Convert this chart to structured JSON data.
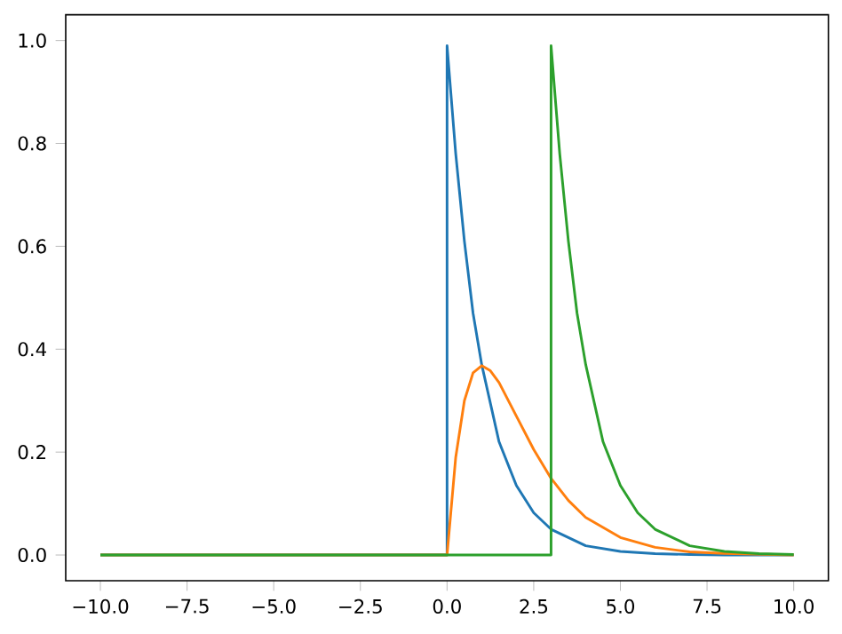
{
  "chart_data": {
    "type": "line",
    "xlim": [
      -11,
      11
    ],
    "ylim": [
      -0.05,
      1.05
    ],
    "xticks": [
      {
        "value": -10,
        "label": "−10.0"
      },
      {
        "value": -7.5,
        "label": "−7.5"
      },
      {
        "value": -5,
        "label": "−5.0"
      },
      {
        "value": -2.5,
        "label": "−2.5"
      },
      {
        "value": 0,
        "label": "0.0"
      },
      {
        "value": 2.5,
        "label": "2.5"
      },
      {
        "value": 5,
        "label": "5.0"
      },
      {
        "value": 7.5,
        "label": "7.5"
      },
      {
        "value": 10,
        "label": "10.0"
      }
    ],
    "yticks": [
      {
        "value": 0,
        "label": "0.0"
      },
      {
        "value": 0.2,
        "label": "0.2"
      },
      {
        "value": 0.4,
        "label": "0.4"
      },
      {
        "value": 0.6,
        "label": "0.6"
      },
      {
        "value": 0.8,
        "label": "0.8"
      },
      {
        "value": 1,
        "label": "1.0"
      }
    ],
    "grid": false,
    "marker": "none",
    "line_style": "solid",
    "series": [
      {
        "color": "#1f77b4",
        "x": [
          -10,
          0,
          0,
          0.25,
          0.5,
          0.75,
          1,
          1.5,
          2,
          2.5,
          3,
          4,
          5,
          6,
          7,
          8,
          10
        ],
        "values": [
          0,
          0,
          0.99,
          0.78,
          0.61,
          0.47,
          0.37,
          0.22,
          0.135,
          0.082,
          0.05,
          0.018,
          0.007,
          0.0025,
          0.001,
          0,
          0
        ]
      },
      {
        "color": "#ff7f0e",
        "x": [
          -10,
          0,
          0.25,
          0.5,
          0.75,
          1,
          1.25,
          1.5,
          2,
          2.5,
          3,
          3.5,
          4,
          5,
          6,
          7,
          8,
          10
        ],
        "values": [
          0,
          0,
          0.19,
          0.3,
          0.354,
          0.368,
          0.358,
          0.335,
          0.27,
          0.205,
          0.149,
          0.106,
          0.073,
          0.034,
          0.015,
          0.006,
          0.003,
          0
        ]
      },
      {
        "color": "#2ca02c",
        "x": [
          -10,
          3,
          3,
          3.25,
          3.5,
          3.75,
          4,
          4.5,
          5,
          5.5,
          6,
          7,
          8,
          9,
          10
        ],
        "values": [
          0,
          0,
          0.99,
          0.78,
          0.61,
          0.47,
          0.37,
          0.22,
          0.135,
          0.082,
          0.05,
          0.018,
          0.007,
          0.0025,
          0.001
        ]
      }
    ]
  }
}
